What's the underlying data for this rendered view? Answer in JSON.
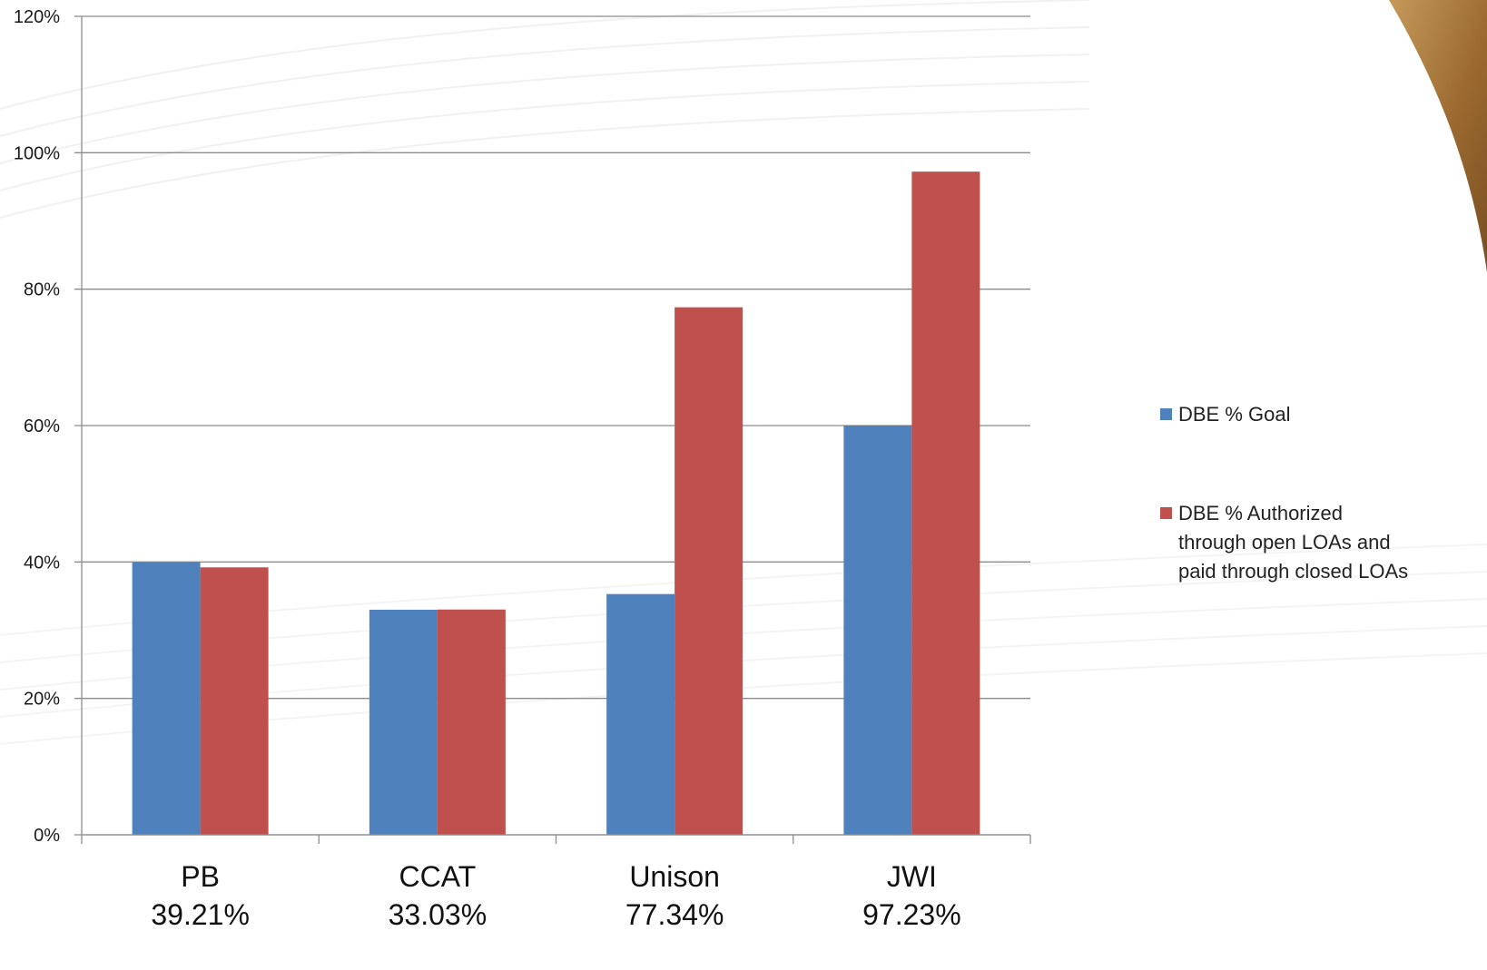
{
  "chart_data": {
    "type": "bar",
    "categories": [
      "PB",
      "CCAT",
      "Unison",
      "JWI"
    ],
    "category_sublabels": [
      "39.21%",
      "33.03%",
      "77.34%",
      "97.23%"
    ],
    "series": [
      {
        "name": "DBE % Goal",
        "values": [
          40,
          33,
          35.3,
          60
        ],
        "color": "#4f81bd"
      },
      {
        "name": "DBE % Authorized through open LOAs and paid through closed LOAs",
        "values": [
          39.21,
          33.03,
          77.34,
          97.23
        ],
        "color": "#c0504d"
      }
    ],
    "legend_lines": [
      [
        "DBE % Goal"
      ],
      [
        "DBE % Authorized",
        "through open LOAs and",
        "paid through closed LOAs"
      ]
    ],
    "ylim": [
      0,
      120
    ],
    "y_ticks": [
      0,
      20,
      40,
      60,
      80,
      100,
      120
    ],
    "y_tick_labels": [
      "0%",
      "20%",
      "40%",
      "60%",
      "80%",
      "100%",
      "120%"
    ],
    "grid": true,
    "legend_position": "right",
    "title": "",
    "xlabel": "",
    "ylabel": ""
  },
  "colors": {
    "gridline": "#8c8c8c",
    "accent_corner": "#a87a3e"
  }
}
